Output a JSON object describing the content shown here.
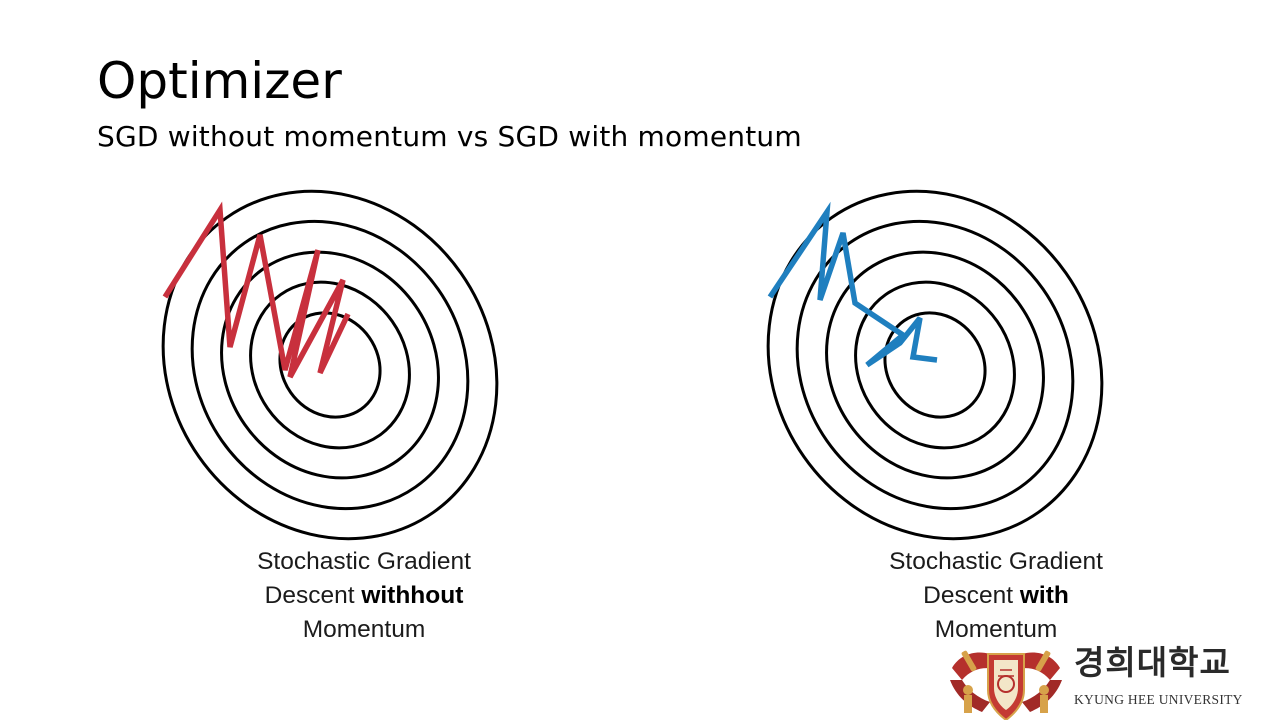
{
  "slide": {
    "title": "Optimizer",
    "subtitle": "SGD without momentum vs SGD with momentum"
  },
  "diagrams": {
    "left": {
      "caption_line1": "Stochastic Gradient",
      "caption_line2_plain": "Descent ",
      "caption_line2_bold": "withhout",
      "caption_line3": "Momentum",
      "path_color": "#c8303d",
      "contour_color": "#000000"
    },
    "right": {
      "caption_line1": "Stochastic Gradient",
      "caption_line2_plain": "Descent ",
      "caption_line2_bold": "with",
      "caption_line3": "Momentum",
      "path_color": "#1f7fbf",
      "contour_color": "#000000"
    }
  },
  "logo": {
    "korean_name": "경희대학교",
    "english_name": "KYUNG HEE UNIVERSITY",
    "emblem_color": "#b5302c",
    "emblem_accent": "#d7a24a"
  }
}
